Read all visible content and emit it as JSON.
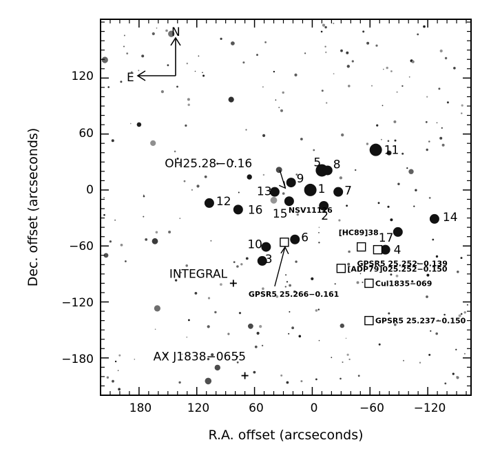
{
  "chart_data": {
    "type": "scatter",
    "title": "",
    "xlabel": "R.A. offset (arcseconds)",
    "ylabel": "Dec. offset (arcseconds)",
    "xlim": [
      220,
      -165
    ],
    "ylim": [
      -220,
      183
    ],
    "x_axis_reversed": true,
    "xticks": [
      180,
      120,
      60,
      0,
      -60,
      -120
    ],
    "xtick_labels": [
      "180",
      "120",
      "60",
      "0",
      "−60",
      "−120"
    ],
    "yticks": [
      120,
      60,
      0,
      -60,
      -120,
      -180
    ],
    "ytick_labels": [
      "120",
      "60",
      "0",
      "−60",
      "−120",
      "−180"
    ],
    "grid": false,
    "background": "inverted grayscale star field",
    "compass": {
      "north": "N",
      "east": "E"
    },
    "sources": [
      {
        "id": "1",
        "x": 2,
        "y": 0
      },
      {
        "id": "2",
        "x": -12,
        "y": -17
      },
      {
        "id": "3",
        "x": 52,
        "y": -76
      },
      {
        "id": "4",
        "x": -76,
        "y": -64
      },
      {
        "id": "5",
        "x": -10,
        "y": 21
      },
      {
        "id": "6",
        "x": 18,
        "y": -53
      },
      {
        "id": "7",
        "x": -27,
        "y": -2
      },
      {
        "id": "8",
        "x": -16,
        "y": 21
      },
      {
        "id": "9",
        "x": 22,
        "y": 8
      },
      {
        "id": "10",
        "x": 48,
        "y": -61
      },
      {
        "id": "11",
        "x": -66,
        "y": 43
      },
      {
        "id": "12",
        "x": 107,
        "y": -14
      },
      {
        "id": "13",
        "x": 39,
        "y": -2
      },
      {
        "id": "14",
        "x": -127,
        "y": -31
      },
      {
        "id": "15",
        "x": 24,
        "y": -12
      },
      {
        "id": "16",
        "x": 77,
        "y": -21
      },
      {
        "id": "17",
        "x": -89,
        "y": -45
      }
    ],
    "annotations": [
      {
        "text": "OH25.28−0.16",
        "x": 28,
        "y": 2,
        "marker": "arrow"
      },
      {
        "text": "NSV11126",
        "x": 24,
        "y": -12,
        "marker": "none"
      },
      {
        "text": "INTEGRAL",
        "x": 82,
        "y": -100,
        "marker": "plus"
      },
      {
        "text": "AX J1838−0655",
        "x": 70,
        "y": -199,
        "marker": "plus"
      },
      {
        "text": "GPSR5 25.266−0.161",
        "x": 29,
        "y": -56,
        "marker": "square-arrow"
      },
      {
        "text": "[HC89]38",
        "x": -51,
        "y": -61,
        "marker": "square"
      },
      {
        "text": "GPSR5 25.252−0.139",
        "x": -68,
        "y": -64,
        "marker": "square"
      },
      {
        "text": "[ADP79]025.252−0.150",
        "x": -30,
        "y": -84,
        "marker": "square"
      },
      {
        "text": "Cul1835−069",
        "x": -59,
        "y": -100,
        "marker": "square"
      },
      {
        "text": "GPSR5 25.237−0.150",
        "x": -59,
        "y": -140,
        "marker": "square"
      }
    ]
  }
}
